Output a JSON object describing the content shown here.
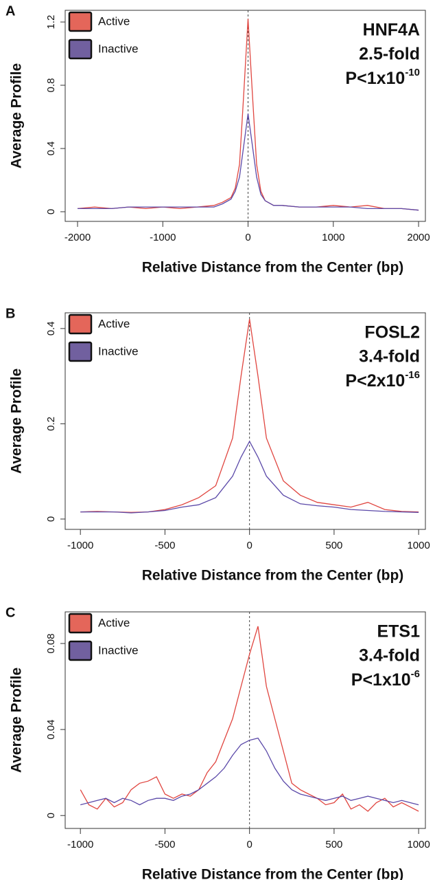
{
  "chart_data": [
    {
      "type": "line",
      "panel": "A",
      "xlabel": "Relative Distance from the Center (bp)",
      "ylabel": "Average Profile",
      "annotations": [
        "HNF4A",
        "2.5-fold"
      ],
      "p_value": "P<1x10",
      "p_exponent": "-10",
      "legend": "top-left",
      "reference_line_x": 0,
      "x": [
        -2000,
        -1800,
        -1600,
        -1400,
        -1200,
        -1000,
        -800,
        -600,
        -400,
        -300,
        -200,
        -150,
        -100,
        -50,
        0,
        50,
        100,
        150,
        200,
        300,
        400,
        600,
        800,
        1000,
        1200,
        1400,
        1600,
        1800,
        2000
      ],
      "series": [
        {
          "name": "Active",
          "color": "#e0453f",
          "legend_color": "#e4665a",
          "values": [
            0.02,
            0.03,
            0.02,
            0.03,
            0.02,
            0.03,
            0.02,
            0.03,
            0.04,
            0.06,
            0.09,
            0.15,
            0.3,
            0.75,
            1.22,
            0.75,
            0.3,
            0.13,
            0.07,
            0.04,
            0.04,
            0.03,
            0.03,
            0.04,
            0.03,
            0.04,
            0.02,
            0.02,
            0.01
          ]
        },
        {
          "name": "Inactive",
          "color": "#5a48a8",
          "legend_color": "#71609f",
          "values": [
            0.02,
            0.02,
            0.02,
            0.03,
            0.03,
            0.03,
            0.03,
            0.03,
            0.03,
            0.05,
            0.08,
            0.13,
            0.22,
            0.42,
            0.62,
            0.42,
            0.22,
            0.11,
            0.07,
            0.04,
            0.04,
            0.03,
            0.03,
            0.03,
            0.03,
            0.02,
            0.02,
            0.02,
            0.01
          ]
        }
      ],
      "xlim": [
        -2145,
        2080
      ],
      "xticks": [
        -2000,
        -1000,
        0,
        1000,
        2000
      ],
      "ylim": [
        -0.061,
        1.274
      ],
      "yticks": [
        0,
        0.4,
        0.8,
        1.2
      ]
    },
    {
      "type": "line",
      "panel": "B",
      "xlabel": "Relative Distance from the Center (bp)",
      "ylabel": "Average Profile",
      "annotations": [
        "FOSL2",
        "3.4-fold"
      ],
      "p_value": "P<2x10",
      "p_exponent": "-16",
      "legend": "top-left",
      "reference_line_x": 0,
      "x": [
        -1000,
        -900,
        -800,
        -700,
        -600,
        -500,
        -400,
        -300,
        -200,
        -100,
        -50,
        0,
        50,
        100,
        200,
        300,
        400,
        500,
        600,
        700,
        800,
        900,
        1000
      ],
      "series": [
        {
          "name": "Active",
          "color": "#e0453f",
          "legend_color": "#e4665a",
          "values": [
            0.015,
            0.016,
            0.015,
            0.014,
            0.015,
            0.02,
            0.03,
            0.045,
            0.07,
            0.17,
            0.3,
            0.42,
            0.3,
            0.17,
            0.08,
            0.05,
            0.035,
            0.03,
            0.025,
            0.035,
            0.02,
            0.016,
            0.015
          ]
        },
        {
          "name": "Inactive",
          "color": "#5a48a8",
          "legend_color": "#71609f",
          "values": [
            0.015,
            0.015,
            0.015,
            0.013,
            0.015,
            0.018,
            0.025,
            0.03,
            0.045,
            0.09,
            0.13,
            0.163,
            0.13,
            0.09,
            0.05,
            0.032,
            0.028,
            0.025,
            0.02,
            0.018,
            0.016,
            0.015,
            0.014
          ]
        }
      ],
      "xlim": [
        -1090,
        1040
      ],
      "xticks": [
        -1000,
        -500,
        0,
        500,
        1000
      ],
      "ylim": [
        -0.0217,
        0.433
      ],
      "yticks": [
        0,
        0.2,
        0.4
      ]
    },
    {
      "type": "line",
      "panel": "C",
      "xlabel": "Relative Distance from the Center (bp)",
      "ylabel": "Average Profile",
      "annotations": [
        "ETS1",
        "3.4-fold"
      ],
      "p_value": "P<1x10",
      "p_exponent": "-6",
      "legend": "top-left",
      "reference_line_x": 0,
      "x": [
        -1000,
        -950,
        -900,
        -850,
        -800,
        -750,
        -700,
        -650,
        -600,
        -550,
        -500,
        -450,
        -400,
        -350,
        -300,
        -250,
        -200,
        -150,
        -100,
        -50,
        0,
        50,
        100,
        150,
        200,
        250,
        300,
        350,
        400,
        450,
        500,
        550,
        600,
        650,
        700,
        750,
        800,
        850,
        900,
        950,
        1000
      ],
      "series": [
        {
          "name": "Active",
          "color": "#e0453f",
          "legend_color": "#e4665a",
          "values": [
            0.012,
            0.005,
            0.003,
            0.008,
            0.004,
            0.006,
            0.012,
            0.015,
            0.016,
            0.018,
            0.01,
            0.008,
            0.01,
            0.009,
            0.012,
            0.02,
            0.025,
            0.035,
            0.045,
            0.06,
            0.075,
            0.088,
            0.06,
            0.045,
            0.03,
            0.015,
            0.012,
            0.01,
            0.008,
            0.005,
            0.006,
            0.01,
            0.003,
            0.005,
            0.002,
            0.006,
            0.008,
            0.004,
            0.006,
            0.004,
            0.002
          ]
        },
        {
          "name": "Inactive",
          "color": "#5a48a8",
          "legend_color": "#71609f",
          "values": [
            0.005,
            0.006,
            0.007,
            0.008,
            0.006,
            0.008,
            0.007,
            0.005,
            0.007,
            0.008,
            0.008,
            0.007,
            0.009,
            0.01,
            0.012,
            0.015,
            0.018,
            0.022,
            0.028,
            0.033,
            0.035,
            0.036,
            0.03,
            0.022,
            0.016,
            0.012,
            0.01,
            0.009,
            0.008,
            0.007,
            0.008,
            0.009,
            0.007,
            0.008,
            0.009,
            0.008,
            0.007,
            0.006,
            0.007,
            0.006,
            0.005
          ]
        }
      ],
      "xlim": [
        -1090,
        1040
      ],
      "xticks": [
        -1000,
        -500,
        0,
        500,
        1000
      ],
      "ylim": [
        -0.006,
        0.0947
      ],
      "yticks": [
        0,
        0.04,
        0.08
      ]
    }
  ]
}
